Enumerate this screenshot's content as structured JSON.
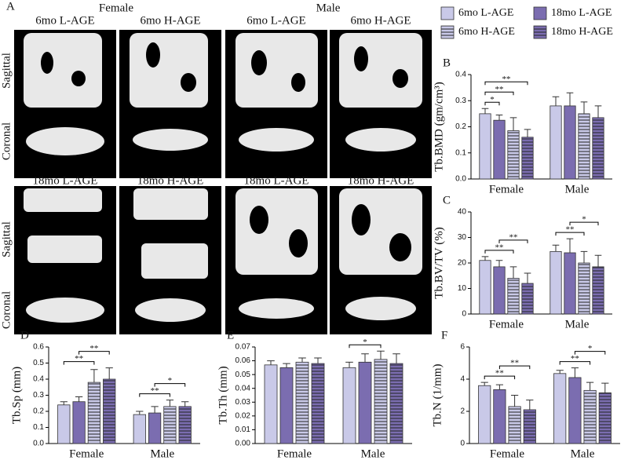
{
  "panel_a": {
    "label": "A",
    "groups": [
      "Female",
      "Male"
    ],
    "columns_top": [
      "6mo L-AGE",
      "6mo H-AGE",
      "6mo L-AGE",
      "6mo H-AGE"
    ],
    "columns_bottom": [
      "18mo L-AGE",
      "18mo H-AGE",
      "18mo L-AGE",
      "18mo H-AGE"
    ],
    "rows": [
      "Sagittal",
      "Coronal"
    ]
  },
  "chart_data": [
    {
      "type": "bar",
      "panel": "B",
      "ylabel": "Tb.BMD (gm/cm³)",
      "categories": [
        "Female",
        "Male"
      ],
      "ylim": [
        0,
        0.4
      ],
      "yticks": [
        {
          "value": 0,
          "label": "0.0"
        },
        0.1,
        0.2,
        0.3,
        0.4
      ],
      "series": [
        {
          "name": "6mo L-AGE",
          "color": "#c9c9e8",
          "hatch": false,
          "values": [
            0.25,
            0.28
          ],
          "errors": [
            0.02,
            0.035
          ]
        },
        {
          "name": "18mo L-AGE",
          "color": "#7b6db0",
          "hatch": false,
          "values": [
            0.225,
            0.28
          ],
          "errors": [
            0.02,
            0.05
          ]
        },
        {
          "name": "6mo H-AGE",
          "color": "#c9c9e8",
          "hatch": true,
          "values": [
            0.185,
            0.25
          ],
          "errors": [
            0.05,
            0.045
          ]
        },
        {
          "name": "18mo H-AGE",
          "color": "#7b6db0",
          "hatch": true,
          "values": [
            0.16,
            0.235
          ],
          "errors": [
            0.03,
            0.045
          ]
        }
      ],
      "annotations": [
        {
          "label": "*",
          "category": 0,
          "between": [
            0,
            1
          ]
        },
        {
          "label": "**",
          "category": 0,
          "between": [
            0,
            2
          ]
        },
        {
          "label": "**",
          "category": 0,
          "between": [
            0,
            3
          ]
        }
      ]
    },
    {
      "type": "bar",
      "panel": "C",
      "ylabel": "Tb.BV/TV (%)",
      "categories": [
        "Female",
        "Male"
      ],
      "ylim": [
        0,
        40
      ],
      "yticks": [
        0,
        10,
        20,
        30,
        40
      ],
      "series": [
        {
          "name": "6mo L-AGE",
          "color": "#c9c9e8",
          "hatch": false,
          "values": [
            21,
            24.5
          ],
          "errors": [
            1.5,
            2.5
          ]
        },
        {
          "name": "18mo L-AGE",
          "color": "#7b6db0",
          "hatch": false,
          "values": [
            18.5,
            24
          ],
          "errors": [
            2.5,
            5.5
          ]
        },
        {
          "name": "6mo H-AGE",
          "color": "#c9c9e8",
          "hatch": true,
          "values": [
            14,
            20
          ],
          "errors": [
            4.5,
            4.5
          ]
        },
        {
          "name": "18mo H-AGE",
          "color": "#7b6db0",
          "hatch": true,
          "values": [
            12,
            18.5
          ],
          "errors": [
            4,
            4.5
          ]
        }
      ],
      "annotations": [
        {
          "label": "**",
          "category": 0,
          "between": [
            0,
            2
          ]
        },
        {
          "label": "**",
          "category": 0,
          "between": [
            1,
            3
          ]
        },
        {
          "label": "**",
          "category": 1,
          "between": [
            0,
            2
          ]
        },
        {
          "label": "*",
          "category": 1,
          "between": [
            1,
            3
          ]
        }
      ]
    },
    {
      "type": "bar",
      "panel": "D",
      "ylabel": "Tb.Sp (mm)",
      "categories": [
        "Female",
        "Male"
      ],
      "ylim": [
        0,
        0.6
      ],
      "yticks": [
        {
          "value": 0,
          "label": "0.0"
        },
        0.1,
        0.2,
        0.3,
        0.4,
        0.5,
        0.6
      ],
      "series": [
        {
          "name": "6mo L-AGE",
          "color": "#c9c9e8",
          "hatch": false,
          "values": [
            0.24,
            0.18
          ],
          "errors": [
            0.02,
            0.02
          ]
        },
        {
          "name": "18mo L-AGE",
          "color": "#7b6db0",
          "hatch": false,
          "values": [
            0.26,
            0.19
          ],
          "errors": [
            0.03,
            0.04
          ]
        },
        {
          "name": "6mo H-AGE",
          "color": "#c9c9e8",
          "hatch": true,
          "values": [
            0.38,
            0.23
          ],
          "errors": [
            0.08,
            0.04
          ]
        },
        {
          "name": "18mo H-AGE",
          "color": "#7b6db0",
          "hatch": true,
          "values": [
            0.4,
            0.23
          ],
          "errors": [
            0.07,
            0.03
          ]
        }
      ],
      "annotations": [
        {
          "label": "**",
          "category": 0,
          "between": [
            0,
            2
          ]
        },
        {
          "label": "**",
          "category": 0,
          "between": [
            1,
            3
          ]
        },
        {
          "label": "**",
          "category": 1,
          "between": [
            0,
            2
          ]
        },
        {
          "label": "*",
          "category": 1,
          "between": [
            1,
            3
          ]
        }
      ]
    },
    {
      "type": "bar",
      "panel": "E",
      "ylabel": "Tb.Th (mm)",
      "categories": [
        "Female",
        "Male"
      ],
      "ylim": [
        0,
        0.07
      ],
      "yticks": [
        {
          "value": 0,
          "label": "0.00"
        },
        0.01,
        0.02,
        0.03,
        0.04,
        0.05,
        0.06,
        0.07
      ],
      "series": [
        {
          "name": "6mo L-AGE",
          "color": "#c9c9e8",
          "hatch": false,
          "values": [
            0.057,
            0.055
          ],
          "errors": [
            0.003,
            0.004
          ]
        },
        {
          "name": "18mo L-AGE",
          "color": "#7b6db0",
          "hatch": false,
          "values": [
            0.055,
            0.059
          ],
          "errors": [
            0.003,
            0.006
          ]
        },
        {
          "name": "6mo H-AGE",
          "color": "#c9c9e8",
          "hatch": true,
          "values": [
            0.059,
            0.061
          ],
          "errors": [
            0.003,
            0.006
          ]
        },
        {
          "name": "18mo H-AGE",
          "color": "#7b6db0",
          "hatch": true,
          "values": [
            0.058,
            0.058
          ],
          "errors": [
            0.004,
            0.007
          ]
        }
      ],
      "annotations": [
        {
          "label": "*",
          "category": 1,
          "between": [
            0,
            2
          ]
        }
      ]
    },
    {
      "type": "bar",
      "panel": "F",
      "ylabel": "Tb.N (1/mm)",
      "categories": [
        "Female",
        "Male"
      ],
      "ylim": [
        0,
        6
      ],
      "yticks": [
        0,
        2,
        4,
        6
      ],
      "series": [
        {
          "name": "6mo L-AGE",
          "color": "#c9c9e8",
          "hatch": false,
          "values": [
            3.6,
            4.35
          ],
          "errors": [
            0.2,
            0.2
          ]
        },
        {
          "name": "18mo L-AGE",
          "color": "#7b6db0",
          "hatch": false,
          "values": [
            3.35,
            4.1
          ],
          "errors": [
            0.3,
            0.6
          ]
        },
        {
          "name": "6mo H-AGE",
          "color": "#c9c9e8",
          "hatch": true,
          "values": [
            2.3,
            3.3
          ],
          "errors": [
            0.7,
            0.5
          ]
        },
        {
          "name": "18mo H-AGE",
          "color": "#7b6db0",
          "hatch": true,
          "values": [
            2.1,
            3.15
          ],
          "errors": [
            0.6,
            0.6
          ]
        }
      ],
      "annotations": [
        {
          "label": "**",
          "category": 0,
          "between": [
            0,
            2
          ]
        },
        {
          "label": "**",
          "category": 0,
          "between": [
            1,
            3
          ]
        },
        {
          "label": "**",
          "category": 1,
          "between": [
            0,
            2
          ]
        },
        {
          "label": "*",
          "category": 1,
          "between": [
            1,
            3
          ]
        }
      ]
    }
  ]
}
